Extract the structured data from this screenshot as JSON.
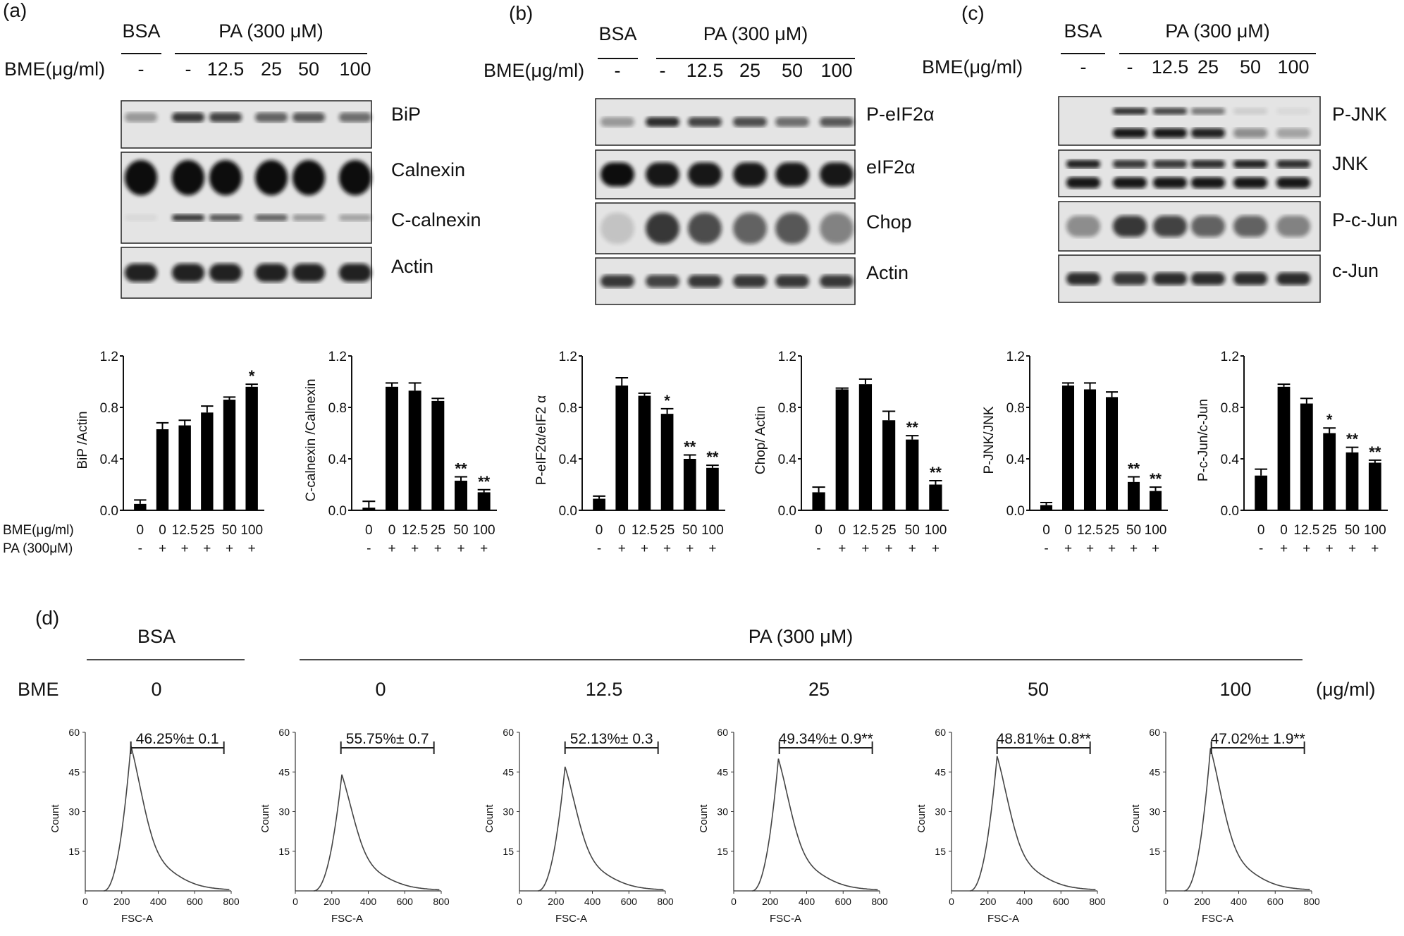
{
  "panel_labels": [
    "(a)",
    "(b)",
    "(c)",
    "(d)"
  ],
  "blots": [
    {
      "bsa": "BSA",
      "pa": "PA (300 μM)",
      "bme_label": "BME(μg/ml)",
      "lanes": [
        "-",
        "-",
        "12.5",
        "25",
        "50",
        "100"
      ],
      "bands": [
        "BiP",
        "Calnexin",
        "C-calnexin",
        "Actin"
      ]
    },
    {
      "bsa": "BSA",
      "pa": "PA (300 μM)",
      "bme_label": "BME(μg/ml)",
      "lanes": [
        "-",
        "-",
        "12.5",
        "25",
        "50",
        "100"
      ],
      "bands": [
        "P-eIF2α",
        "eIF2α",
        "Chop",
        "Actin"
      ]
    },
    {
      "bsa": "BSA",
      "pa": "PA (300 μM)",
      "bme_label": "BME(μg/ml)",
      "lanes": [
        "-",
        "-",
        "12.5",
        "25",
        "50",
        "100"
      ],
      "bands": [
        "P-JNK",
        "JNK",
        "P-c-Jun",
        "c-Jun"
      ]
    }
  ],
  "bar_row_labels": {
    "bme": "BME(μg/ml)",
    "pa": "PA (300μM)"
  },
  "chart_data": [
    {
      "type": "bar",
      "ylabel": "BiP /Actin",
      "ylim": [
        0,
        1.2
      ],
      "yticks": [
        "0.0",
        "0.4",
        "0.8",
        "1.2"
      ],
      "categories": [
        "0",
        "0",
        "12.5",
        "25",
        "50",
        "100"
      ],
      "pa": [
        "-",
        "+",
        "+",
        "+",
        "+",
        "+"
      ],
      "values": [
        0.05,
        0.63,
        0.66,
        0.76,
        0.86,
        0.96
      ],
      "errors": [
        0.03,
        0.05,
        0.04,
        0.05,
        0.02,
        0.02
      ],
      "significance": [
        "",
        "",
        "",
        "",
        "",
        "*"
      ]
    },
    {
      "type": "bar",
      "ylabel": "C-calnexin /Calnexin",
      "ylim": [
        0,
        1.2
      ],
      "yticks": [
        "0.0",
        "0.4",
        "0.8",
        "1.2"
      ],
      "categories": [
        "0",
        "0",
        "12.5",
        "25",
        "50",
        "100"
      ],
      "pa": [
        "-",
        "+",
        "+",
        "+",
        "+",
        "+"
      ],
      "values": [
        0.02,
        0.96,
        0.93,
        0.85,
        0.23,
        0.14
      ],
      "errors": [
        0.05,
        0.03,
        0.06,
        0.02,
        0.03,
        0.02
      ],
      "significance": [
        "",
        "",
        "",
        "",
        "**",
        "**"
      ]
    },
    {
      "type": "bar",
      "ylabel": "P-eIF2α/eIF2 α",
      "ylim": [
        0,
        1.2
      ],
      "yticks": [
        "0.0",
        "0.4",
        "0.8",
        "1.2"
      ],
      "categories": [
        "0",
        "0",
        "12.5",
        "25",
        "50",
        "100"
      ],
      "pa": [
        "-",
        "+",
        "+",
        "+",
        "+",
        "+"
      ],
      "values": [
        0.09,
        0.97,
        0.89,
        0.75,
        0.4,
        0.33
      ],
      "errors": [
        0.02,
        0.06,
        0.02,
        0.04,
        0.03,
        0.02
      ],
      "significance": [
        "",
        "",
        "",
        "*",
        "**",
        "**"
      ]
    },
    {
      "type": "bar",
      "ylabel": "Chop/ Actin",
      "ylim": [
        0,
        1.2
      ],
      "yticks": [
        "0.0",
        "0.4",
        "0.8",
        "1.2"
      ],
      "categories": [
        "0",
        "0",
        "12.5",
        "25",
        "50",
        "100"
      ],
      "pa": [
        "-",
        "+",
        "+",
        "+",
        "+",
        "+"
      ],
      "values": [
        0.14,
        0.94,
        0.98,
        0.7,
        0.55,
        0.2
      ],
      "errors": [
        0.04,
        0.01,
        0.04,
        0.07,
        0.03,
        0.03
      ],
      "significance": [
        "",
        "",
        "",
        "",
        "**",
        "**"
      ]
    },
    {
      "type": "bar",
      "ylabel": "P-JNK/JNK",
      "ylim": [
        0,
        1.2
      ],
      "yticks": [
        "0.0",
        "0.4",
        "0.8",
        "1.2"
      ],
      "categories": [
        "0",
        "0",
        "12.5",
        "25",
        "50",
        "100"
      ],
      "pa": [
        "-",
        "+",
        "+",
        "+",
        "+",
        "+"
      ],
      "values": [
        0.04,
        0.97,
        0.94,
        0.88,
        0.22,
        0.15
      ],
      "errors": [
        0.02,
        0.02,
        0.05,
        0.04,
        0.04,
        0.03
      ],
      "significance": [
        "",
        "",
        "",
        "",
        "**",
        "**"
      ]
    },
    {
      "type": "bar",
      "ylabel": "P-c-Jun/c-Jun",
      "ylim": [
        0,
        1.2
      ],
      "yticks": [
        "0.0",
        "0.4",
        "0.8",
        "1.2"
      ],
      "categories": [
        "0",
        "0",
        "12.5",
        "25",
        "50",
        "100"
      ],
      "pa": [
        "-",
        "+",
        "+",
        "+",
        "+",
        "+"
      ],
      "values": [
        0.27,
        0.96,
        0.83,
        0.6,
        0.45,
        0.37
      ],
      "errors": [
        0.05,
        0.02,
        0.04,
        0.04,
        0.04,
        0.02
      ],
      "significance": [
        "",
        "",
        "",
        "*",
        "**",
        "**"
      ]
    }
  ],
  "flow": {
    "bsa": "BSA",
    "pa": "PA (300 μM)",
    "bme": "BME",
    "unit": "(μg/ml)",
    "xlabel": "FSC-A",
    "ylabel": "Count",
    "xlim": [
      0,
      800
    ],
    "ylim": [
      0,
      60
    ],
    "xticks": [
      "0",
      "200",
      "400",
      "600",
      "800"
    ],
    "yticks": [
      "15",
      "30",
      "45",
      "60"
    ],
    "histograms": [
      {
        "dose": "0",
        "gate": "46.25%± 0.1",
        "peak_x": 250,
        "peak_count": 55
      },
      {
        "dose": "0",
        "gate": "55.75%± 0.7",
        "peak_x": 255,
        "peak_count": 44
      },
      {
        "dose": "12.5",
        "gate": "52.13%± 0.3",
        "peak_x": 250,
        "peak_count": 47
      },
      {
        "dose": "25",
        "gate": "49.34%± 0.9**",
        "peak_x": 245,
        "peak_count": 50
      },
      {
        "dose": "50",
        "gate": "48.81%± 0.8**",
        "peak_x": 250,
        "peak_count": 51
      },
      {
        "dose": "100",
        "gate": "47.02%± 1.9**",
        "peak_x": 245,
        "peak_count": 54
      }
    ],
    "gate_range": [
      250,
      760
    ]
  }
}
